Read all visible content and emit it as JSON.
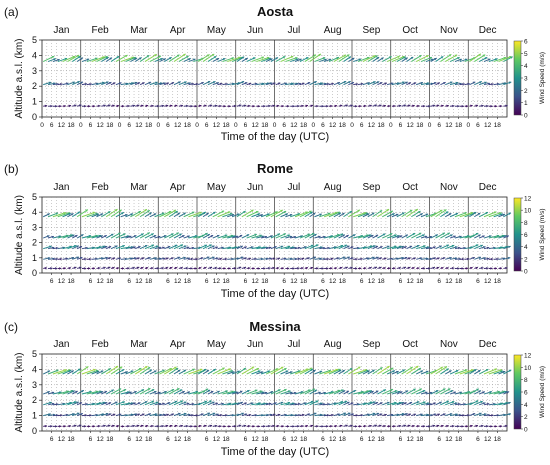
{
  "chart_data": [
    {
      "type": "wind-barb-panel",
      "panel_label": "(a)",
      "title": "Aosta",
      "months": [
        "Jan",
        "Feb",
        "Mar",
        "Apr",
        "May",
        "Jun",
        "Jul",
        "Aug",
        "Sep",
        "Oct",
        "Nov",
        "Dec"
      ],
      "xlabel": "Time of the day (UTC)",
      "x_ticks": [
        "0",
        "6",
        "12",
        "18"
      ],
      "ylabel": "Altitude a.s.l. (km)",
      "y_ticks": [
        "0",
        "1",
        "2",
        "3",
        "4",
        "5"
      ],
      "ylim": [
        0,
        5
      ],
      "levels_km": [
        0.7,
        2.1,
        3.6
      ],
      "hours_utc": [
        0,
        3,
        6,
        9,
        12,
        15,
        18,
        21
      ],
      "colorbar": {
        "label": "Wind Speed (m/s)",
        "ticks": [
          "0",
          "1",
          "2",
          "3",
          "4",
          "5",
          "6"
        ],
        "range": [
          0,
          6
        ]
      },
      "speed_by_level": [
        0.8,
        2.2,
        4.3
      ]
    },
    {
      "type": "wind-barb-panel",
      "panel_label": "(b)",
      "title": "Rome",
      "months": [
        "Jan",
        "Feb",
        "Mar",
        "Apr",
        "May",
        "Jun",
        "Jul",
        "Aug",
        "Sep",
        "Oct",
        "Nov",
        "Dec"
      ],
      "xlabel": "Time of the day (UTC)",
      "x_ticks": [
        "6",
        "12",
        "18"
      ],
      "ylabel": "Altitude a.s.l. (km)",
      "y_ticks": [
        "0",
        "1",
        "2",
        "3",
        "4",
        "5"
      ],
      "ylim": [
        0,
        5
      ],
      "levels_km": [
        0.3,
        0.9,
        1.6,
        2.3,
        3.7
      ],
      "hours_utc": [
        0,
        3,
        6,
        9,
        12,
        15,
        18,
        21
      ],
      "colorbar": {
        "label": "Wind Speed (m/s)",
        "ticks": [
          "0",
          "2",
          "4",
          "6",
          "8",
          "10",
          "12"
        ],
        "range": [
          0,
          12
        ]
      },
      "speed_by_level": [
        1.5,
        3.5,
        5.5,
        6.5,
        8.5
      ]
    },
    {
      "type": "wind-barb-panel",
      "panel_label": "(c)",
      "title": "Messina",
      "months": [
        "Jan",
        "Feb",
        "Mar",
        "Apr",
        "May",
        "Jun",
        "Jul",
        "Aug",
        "Sep",
        "Oct",
        "Nov",
        "Dec"
      ],
      "xlabel": "Time of the day (UTC)",
      "x_ticks": [
        "6",
        "12",
        "18"
      ],
      "ylabel": "Altitude a.s.l. (km)",
      "y_ticks": [
        "0",
        "1",
        "2",
        "3",
        "4",
        "5"
      ],
      "ylim": [
        0,
        5
      ],
      "levels_km": [
        0.3,
        1.0,
        1.7,
        2.4,
        3.7
      ],
      "hours_utc": [
        0,
        3,
        6,
        9,
        12,
        15,
        18,
        21
      ],
      "colorbar": {
        "label": "Wind Speed (m/s)",
        "ticks": [
          "0",
          "2",
          "4",
          "6",
          "8",
          "10",
          "12"
        ],
        "range": [
          0,
          12
        ]
      },
      "speed_by_level": [
        1.5,
        4.0,
        5.5,
        7.0,
        9.0
      ]
    }
  ]
}
